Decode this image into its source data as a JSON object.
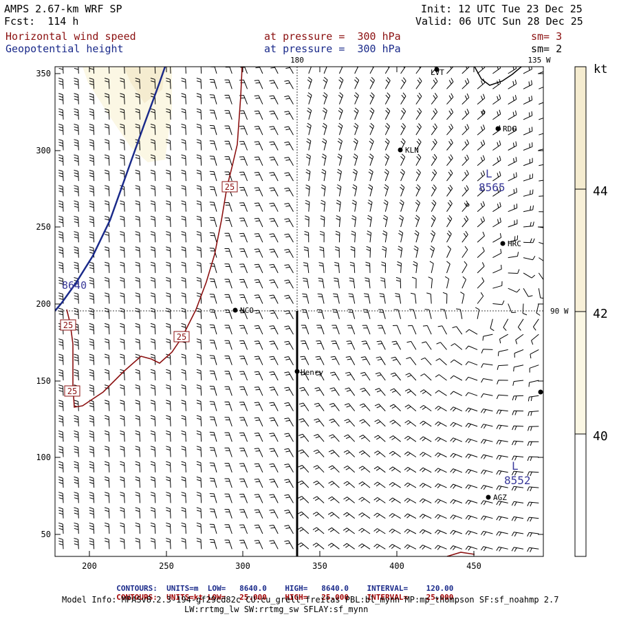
{
  "header": {
    "model": "AMPS 2.67-km WRF SP",
    "fcst": "Fcst:  114 h",
    "init": "Init: 12 UTC Tue 23 Dec 25",
    "valid": "Valid: 06 UTC Sun 28 Dec 25",
    "field1": "Horizontal wind speed",
    "field2": "Geopotential height",
    "level1": "at pressure =  300 hPa",
    "level2": "at pressure =  300 hPa",
    "sm1": "sm= 3",
    "sm2": "sm= 2"
  },
  "map": {
    "x_ticks": [
      "200",
      "250",
      "300",
      "350",
      "400",
      "450"
    ],
    "y_ticks": [
      "350",
      "300",
      "250",
      "200",
      "150",
      "100",
      "50"
    ],
    "meridian_labels": {
      "top_180": "180",
      "top_135w": "135 W",
      "right_90w": "90 W"
    },
    "stations": [
      {
        "label": "LVT"
      },
      {
        "label": "RDG"
      },
      {
        "label": "KLN"
      },
      {
        "label": "HRC"
      },
      {
        "label": "NCO"
      },
      {
        "label": "Henry"
      },
      {
        "label": "AGZ"
      },
      {
        "label": ""
      }
    ],
    "lows": [
      {
        "symbol": "L",
        "value": "8565"
      },
      {
        "symbol": "L",
        "value": "8552"
      }
    ],
    "height_label": "8640",
    "speed_contour_labels": [
      "25",
      "25",
      "25",
      "25"
    ]
  },
  "colorbar": {
    "unit": "kt",
    "levels": [
      "44",
      "42",
      "40"
    ],
    "colors": [
      "#f5ecd0",
      "#f8f0d8",
      "#fbf7e4",
      "#ffffff"
    ]
  },
  "footer": {
    "line1_prefix": "CONTOURS:",
    "line1_units": "UNITS=m",
    "line1_low": "LOW=   8640.0",
    "line1_high": "HIGH=   8640.0",
    "line1_interval": "INTERVAL=    120.00",
    "line2_prefix": "CONTOURS:",
    "line2_units": "UNITS=kt",
    "line2_low": "LOW=   25.000",
    "line2_high": "HIGH=   25.000",
    "line2_interval": "INTERVAL=    25.000",
    "model_info1": "Model Info: MPASv8.2.3-194-gf29cd82c CU:cu_grell_freitas PBL:bl_mynn MP:mp_thompson SF:sf_noahmp 2.7",
    "model_info2": "LW:rrtmg_lw SW:rrtmg_sw SFLAY:sf_mynn"
  }
}
